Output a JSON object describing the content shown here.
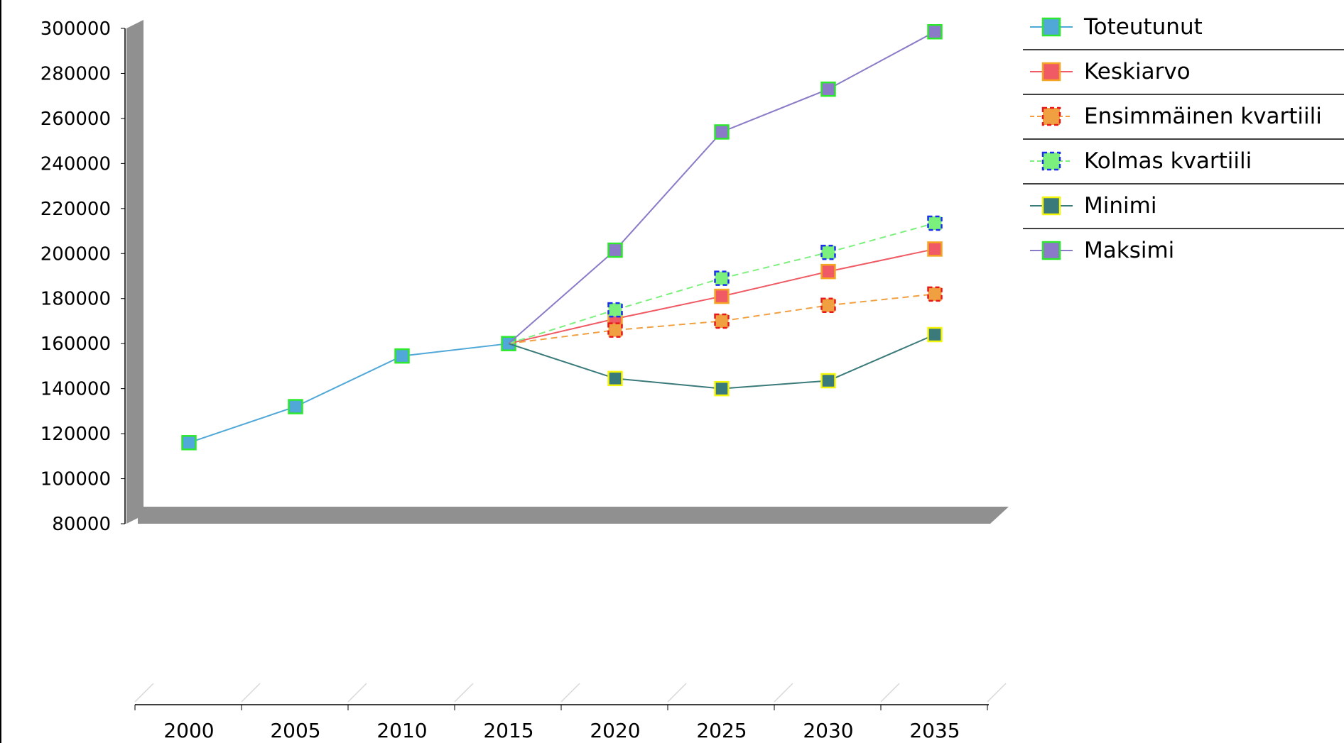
{
  "chart_data": {
    "type": "line",
    "x": [
      2000,
      2005,
      2010,
      2015,
      2020,
      2025,
      2030,
      2035
    ],
    "xlabels": [
      "2000",
      "2005",
      "2010",
      "2015",
      "2020",
      "2025",
      "2030",
      "2035"
    ],
    "ylim": [
      80000,
      300000
    ],
    "yticks": [
      80000,
      100000,
      120000,
      140000,
      160000,
      180000,
      200000,
      220000,
      240000,
      260000,
      280000,
      300000
    ],
    "yticklabels": [
      "80000",
      "100000",
      "120000",
      "140000",
      "160000",
      "180000",
      "200000",
      "220000",
      "240000",
      "260000",
      "280000",
      "300000"
    ],
    "grid": false,
    "legend_position": "right",
    "style": "3d-wall",
    "series": [
      {
        "name": "Toteutunut",
        "values": [
          116000,
          132000,
          154500,
          160000,
          null,
          null,
          null,
          null
        ],
        "color": "#4fa8d8",
        "marker_fill": "#4fa8d8",
        "marker_border": "#2ee82e",
        "dashed": false
      },
      {
        "name": "Keskiarvo",
        "values": [
          null,
          null,
          null,
          160000,
          171000,
          181000,
          192000,
          202000
        ],
        "color": "#f05a64",
        "marker_fill": "#f05a64",
        "marker_border": "#f5a524",
        "dashed": false
      },
      {
        "name": "Ensimmäinen kvartiili",
        "values": [
          null,
          null,
          null,
          160000,
          166000,
          170000,
          177000,
          182000
        ],
        "color": "#f0a040",
        "marker_fill": "#f0a040",
        "marker_border": "#e81818",
        "dashed": true
      },
      {
        "name": "Kolmas kvartiili",
        "values": [
          null,
          null,
          null,
          160000,
          175000,
          189000,
          200500,
          213500
        ],
        "color": "#7cf07c",
        "marker_fill": "#7cf07c",
        "marker_border": "#1a2ef0",
        "dashed": true
      },
      {
        "name": "Minimi",
        "values": [
          null,
          null,
          null,
          160000,
          144500,
          140000,
          143500,
          164000
        ],
        "color": "#3a7a7a",
        "marker_fill": "#3a7a7a",
        "marker_border": "#f5f50a",
        "dashed": false
      },
      {
        "name": "Maksimi",
        "values": [
          null,
          null,
          null,
          160000,
          201500,
          254000,
          273000,
          298500
        ],
        "color": "#8a7ac8",
        "marker_fill": "#8a7ac8",
        "marker_border": "#2ee82e",
        "dashed": false
      }
    ]
  }
}
